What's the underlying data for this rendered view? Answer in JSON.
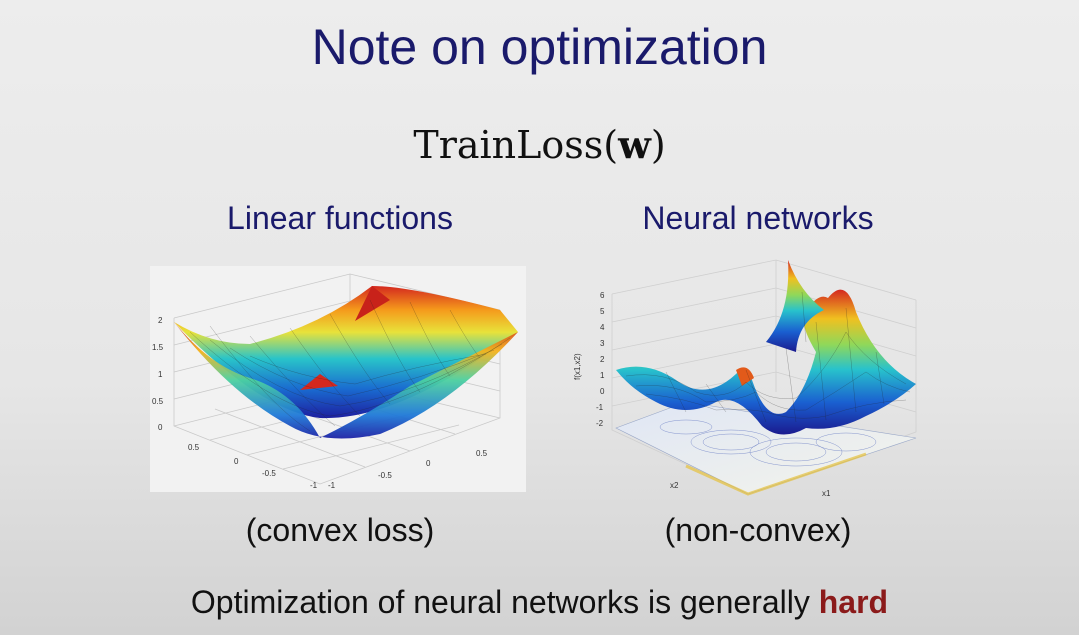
{
  "slide": {
    "title": "Note on optimization",
    "formula_text": "TrainLoss(",
    "formula_var": "w",
    "formula_close": ")"
  },
  "left": {
    "heading": "Linear functions",
    "caption": "(convex loss)",
    "plot_icon": "convex-surface-plot",
    "z_ticks": [
      "2",
      "1.5",
      "1",
      "0.5",
      "0"
    ],
    "x_ticks": [
      "0.5",
      "0",
      "-0.5",
      "-1"
    ],
    "y_ticks": [
      "-1",
      "-0.5",
      "0",
      "0.5"
    ]
  },
  "right": {
    "heading": "Neural networks",
    "caption": "(non-convex)",
    "plot_icon": "nonconvex-surface-plot",
    "z_ticks": [
      "6",
      "5",
      "4",
      "3",
      "2",
      "1",
      "0",
      "-1",
      "-2"
    ],
    "z_label": "f(x1,x2)",
    "x_label": "x2",
    "y_label": "x1"
  },
  "footer": {
    "text": "Optimization of neural networks is generally ",
    "emphasis": "hard"
  },
  "colors": {
    "title": "#1a1a6b",
    "emphasis": "#8b1a1a"
  }
}
